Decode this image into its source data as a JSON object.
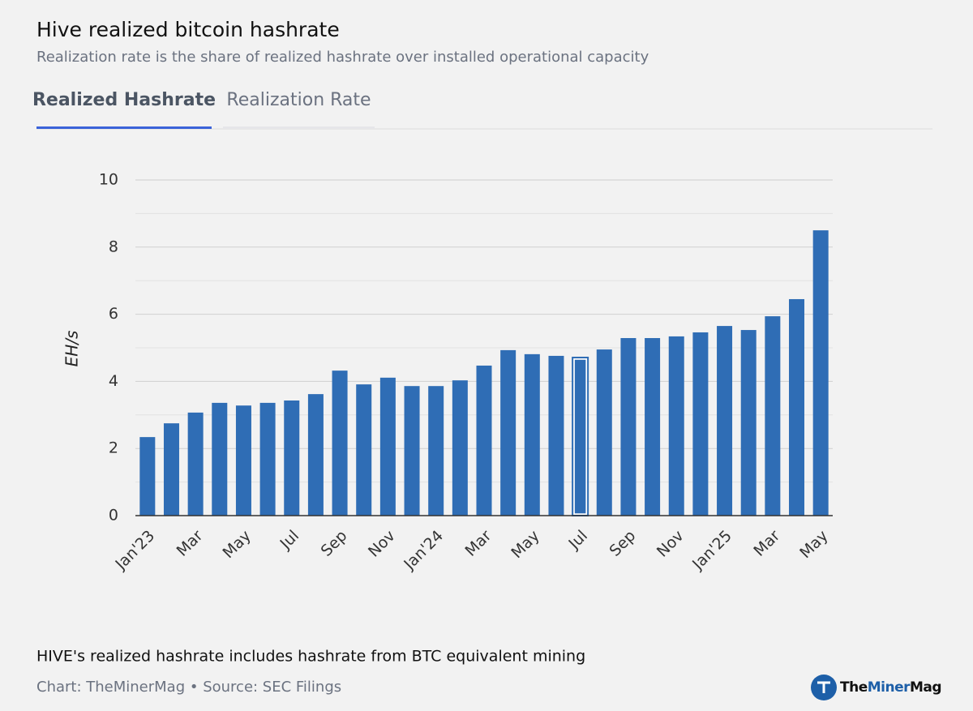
{
  "chart_data": {
    "type": "bar",
    "title": "Hive realized bitcoin hashrate",
    "subtitle": "Realization rate is the share of realized hashrate over installed operational capacity",
    "tabs": [
      "Realized Hashrate",
      "Realization Rate"
    ],
    "active_tab": 0,
    "y_label": "EH/s",
    "categories": [
      "Jan'23",
      null,
      "Mar",
      null,
      "May",
      null,
      "Jul",
      null,
      "Sep",
      null,
      "Nov",
      null,
      "Jan'24",
      null,
      "Mar",
      null,
      "May",
      null,
      "Jul",
      null,
      "Sep",
      null,
      "Nov",
      null,
      "Jan'25",
      null,
      "Mar",
      null,
      "May"
    ],
    "values": [
      2.34,
      2.75,
      3.07,
      3.36,
      3.28,
      3.36,
      3.43,
      3.62,
      4.32,
      3.91,
      4.11,
      3.86,
      3.86,
      4.03,
      4.47,
      4.93,
      4.81,
      4.76,
      4.71,
      4.95,
      5.29,
      5.29,
      5.34,
      5.46,
      5.65,
      5.53,
      5.94,
      6.45,
      8.5
    ],
    "color": "#2f6db5",
    "highlighted": 18,
    "ylim": [
      0,
      10
    ],
    "yticks": [
      0,
      2,
      4,
      6,
      8,
      10
    ],
    "minor_yticks": [
      1,
      3,
      5,
      7,
      9
    ],
    "grid": true,
    "note": "HIVE's realized hashrate includes hashrate from BTC equivalent mining",
    "source": "Chart: TheMinerMag • Source: SEC Filings",
    "logo": [
      "The",
      "Miner",
      "Mag"
    ]
  }
}
